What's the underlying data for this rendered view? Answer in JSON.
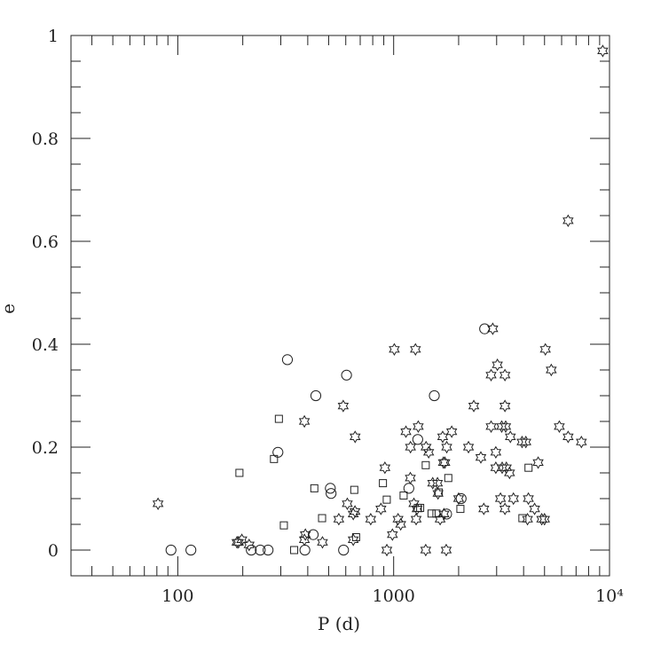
{
  "chart_data": {
    "type": "scatter",
    "title": "",
    "xlabel": "P (d)",
    "ylabel": "e",
    "xscale": "log",
    "xlim": [
      32,
      10000
    ],
    "ylim": [
      -0.05,
      1.0
    ],
    "x_tick_labels": [
      {
        "value": 100,
        "label": "100"
      },
      {
        "value": 1000,
        "label": "1000"
      },
      {
        "value": 10000,
        "label": "10⁴"
      }
    ],
    "y_tick_labels": [
      {
        "value": 0,
        "label": "0"
      },
      {
        "value": 0.2,
        "label": "0.2"
      },
      {
        "value": 0.4,
        "label": "0.4"
      },
      {
        "value": 0.6,
        "label": "0.6"
      },
      {
        "value": 0.8,
        "label": "0.8"
      },
      {
        "value": 1,
        "label": "1"
      }
    ],
    "grid": false,
    "series": [
      {
        "marker": "star",
        "points": [
          {
            "x": 81,
            "y": 0.09
          },
          {
            "x": 188,
            "y": 0.015
          },
          {
            "x": 191,
            "y": 0.015
          },
          {
            "x": 198,
            "y": 0.02
          },
          {
            "x": 214,
            "y": 0.01
          },
          {
            "x": 386,
            "y": 0.25
          },
          {
            "x": 390,
            "y": 0.03
          },
          {
            "x": 386,
            "y": 0.02
          },
          {
            "x": 468,
            "y": 0.015
          },
          {
            "x": 557,
            "y": 0.06
          },
          {
            "x": 584,
            "y": 0.28
          },
          {
            "x": 610,
            "y": 0.09
          },
          {
            "x": 650,
            "y": 0.07
          },
          {
            "x": 663,
            "y": 0.22
          },
          {
            "x": 662,
            "y": 0.075
          },
          {
            "x": 650,
            "y": 0.02
          },
          {
            "x": 783,
            "y": 0.06
          },
          {
            "x": 873,
            "y": 0.08
          },
          {
            "x": 911,
            "y": 0.16
          },
          {
            "x": 930,
            "y": 0.0
          },
          {
            "x": 987,
            "y": 0.03
          },
          {
            "x": 1007,
            "y": 0.39
          },
          {
            "x": 1048,
            "y": 0.06
          },
          {
            "x": 1078,
            "y": 0.05
          },
          {
            "x": 1140,
            "y": 0.23
          },
          {
            "x": 1195,
            "y": 0.14
          },
          {
            "x": 1197,
            "y": 0.2
          },
          {
            "x": 1262,
            "y": 0.39
          },
          {
            "x": 1241,
            "y": 0.09
          },
          {
            "x": 1271,
            "y": 0.06
          },
          {
            "x": 1284,
            "y": 0.08
          },
          {
            "x": 1300,
            "y": 0.24
          },
          {
            "x": 1408,
            "y": 0.0
          },
          {
            "x": 1413,
            "y": 0.2
          },
          {
            "x": 1453,
            "y": 0.19
          },
          {
            "x": 1517,
            "y": 0.13
          },
          {
            "x": 1596,
            "y": 0.13
          },
          {
            "x": 1605,
            "y": 0.11
          },
          {
            "x": 1642,
            "y": 0.06
          },
          {
            "x": 1687,
            "y": 0.22
          },
          {
            "x": 1700,
            "y": 0.17
          },
          {
            "x": 1710,
            "y": 0.07
          },
          {
            "x": 1727,
            "y": 0.17
          },
          {
            "x": 1752,
            "y": 0.0
          },
          {
            "x": 1762,
            "y": 0.2
          },
          {
            "x": 1858,
            "y": 0.23
          },
          {
            "x": 2000,
            "y": 0.1
          },
          {
            "x": 2222,
            "y": 0.2
          },
          {
            "x": 2351,
            "y": 0.28
          },
          {
            "x": 2535,
            "y": 0.18
          },
          {
            "x": 2616,
            "y": 0.08
          },
          {
            "x": 2828,
            "y": 0.24
          },
          {
            "x": 2878,
            "y": 0.43
          },
          {
            "x": 2828,
            "y": 0.34
          },
          {
            "x": 2974,
            "y": 0.19
          },
          {
            "x": 2974,
            "y": 0.16
          },
          {
            "x": 3024,
            "y": 0.36
          },
          {
            "x": 3126,
            "y": 0.1
          },
          {
            "x": 3167,
            "y": 0.24
          },
          {
            "x": 3182,
            "y": 0.16
          },
          {
            "x": 3278,
            "y": 0.34
          },
          {
            "x": 3278,
            "y": 0.28
          },
          {
            "x": 3278,
            "y": 0.08
          },
          {
            "x": 3304,
            "y": 0.24
          },
          {
            "x": 3327,
            "y": 0.16
          },
          {
            "x": 3442,
            "y": 0.15
          },
          {
            "x": 3474,
            "y": 0.22
          },
          {
            "x": 3589,
            "y": 0.1
          },
          {
            "x": 3935,
            "y": 0.21
          },
          {
            "x": 4097,
            "y": 0.21
          },
          {
            "x": 4170,
            "y": 0.06
          },
          {
            "x": 4209,
            "y": 0.1
          },
          {
            "x": 4497,
            "y": 0.08
          },
          {
            "x": 4671,
            "y": 0.17
          },
          {
            "x": 4853,
            "y": 0.06
          },
          {
            "x": 5000,
            "y": 0.06
          },
          {
            "x": 5045,
            "y": 0.39
          },
          {
            "x": 5372,
            "y": 0.35
          },
          {
            "x": 5855,
            "y": 0.24
          },
          {
            "x": 6432,
            "y": 0.22
          },
          {
            "x": 6430,
            "y": 0.64
          },
          {
            "x": 7409,
            "y": 0.21
          },
          {
            "x": 9304,
            "y": 0.97
          }
        ]
      },
      {
        "marker": "square",
        "points": [
          {
            "x": 193,
            "y": 0.15
          },
          {
            "x": 279,
            "y": 0.177
          },
          {
            "x": 294,
            "y": 0.255
          },
          {
            "x": 310,
            "y": 0.048
          },
          {
            "x": 346,
            "y": 0.0
          },
          {
            "x": 429,
            "y": 0.12
          },
          {
            "x": 466,
            "y": 0.062
          },
          {
            "x": 657,
            "y": 0.117
          },
          {
            "x": 670,
            "y": 0.025
          },
          {
            "x": 892,
            "y": 0.13
          },
          {
            "x": 929,
            "y": 0.098
          },
          {
            "x": 1112,
            "y": 0.106
          },
          {
            "x": 1294,
            "y": 0.082
          },
          {
            "x": 1327,
            "y": 0.082
          },
          {
            "x": 1408,
            "y": 0.165
          },
          {
            "x": 1498,
            "y": 0.071
          },
          {
            "x": 1578,
            "y": 0.071
          },
          {
            "x": 1619,
            "y": 0.112
          },
          {
            "x": 1791,
            "y": 0.14
          },
          {
            "x": 2038,
            "y": 0.08
          },
          {
            "x": 3949,
            "y": 0.062
          },
          {
            "x": 4215,
            "y": 0.16
          }
        ]
      },
      {
        "marker": "circle",
        "points": [
          {
            "x": 93,
            "y": 0.0
          },
          {
            "x": 115,
            "y": 0.0
          },
          {
            "x": 219,
            "y": 0.0
          },
          {
            "x": 241,
            "y": 0.0
          },
          {
            "x": 262,
            "y": 0.0
          },
          {
            "x": 291,
            "y": 0.19
          },
          {
            "x": 322,
            "y": 0.37
          },
          {
            "x": 388,
            "y": 0.0
          },
          {
            "x": 424,
            "y": 0.03
          },
          {
            "x": 436,
            "y": 0.3
          },
          {
            "x": 509,
            "y": 0.12
          },
          {
            "x": 513,
            "y": 0.11
          },
          {
            "x": 586,
            "y": 0.0
          },
          {
            "x": 605,
            "y": 0.34
          },
          {
            "x": 1176,
            "y": 0.12
          },
          {
            "x": 1293,
            "y": 0.215
          },
          {
            "x": 1543,
            "y": 0.3
          },
          {
            "x": 1760,
            "y": 0.07
          },
          {
            "x": 2054,
            "y": 0.1
          },
          {
            "x": 2639,
            "y": 0.43
          }
        ]
      }
    ]
  }
}
